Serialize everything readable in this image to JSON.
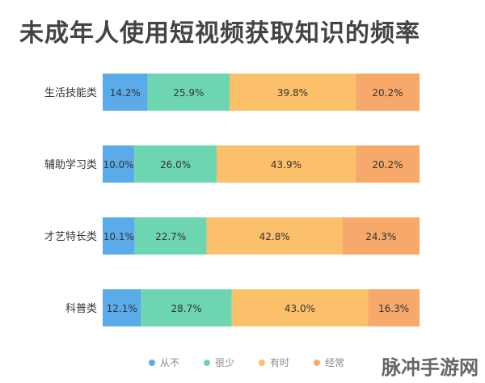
{
  "page": {
    "title": "未成年人使用短视频获取知识的频率",
    "watermark": "脉冲手游网"
  },
  "chart_data": {
    "type": "bar",
    "orientation": "horizontal",
    "stacked": true,
    "normalized": true,
    "title": "未成年人使用短视频获取知识的频率",
    "categories": [
      "生活技能类",
      "辅助学习类",
      "才艺特长类",
      "科普类"
    ],
    "series": [
      {
        "name": "从不",
        "color": "#5aabe8",
        "values": [
          14.2,
          10.0,
          10.1,
          12.1
        ],
        "labels": [
          "14.2%",
          "10.0%",
          "10.1%",
          "12.1%"
        ]
      },
      {
        "name": "很少",
        "color": "#6dd6b0",
        "values": [
          25.9,
          26.0,
          22.7,
          28.7
        ],
        "labels": [
          "25.9%",
          "26.0%",
          "22.7%",
          "28.7%"
        ]
      },
      {
        "name": "有时",
        "color": "#fcc06a",
        "values": [
          39.8,
          43.9,
          42.8,
          43.0
        ],
        "labels": [
          "39.8%",
          "43.9%",
          "42.8%",
          "43.0%"
        ]
      },
      {
        "name": "经常",
        "color": "#f6a96a",
        "values": [
          20.2,
          20.2,
          24.3,
          16.3
        ],
        "labels": [
          "20.2%",
          "20.2%",
          "24.3%",
          "16.3%"
        ]
      }
    ],
    "xlim": [
      0,
      100
    ],
    "grid": false,
    "legend_position": "bottom"
  }
}
